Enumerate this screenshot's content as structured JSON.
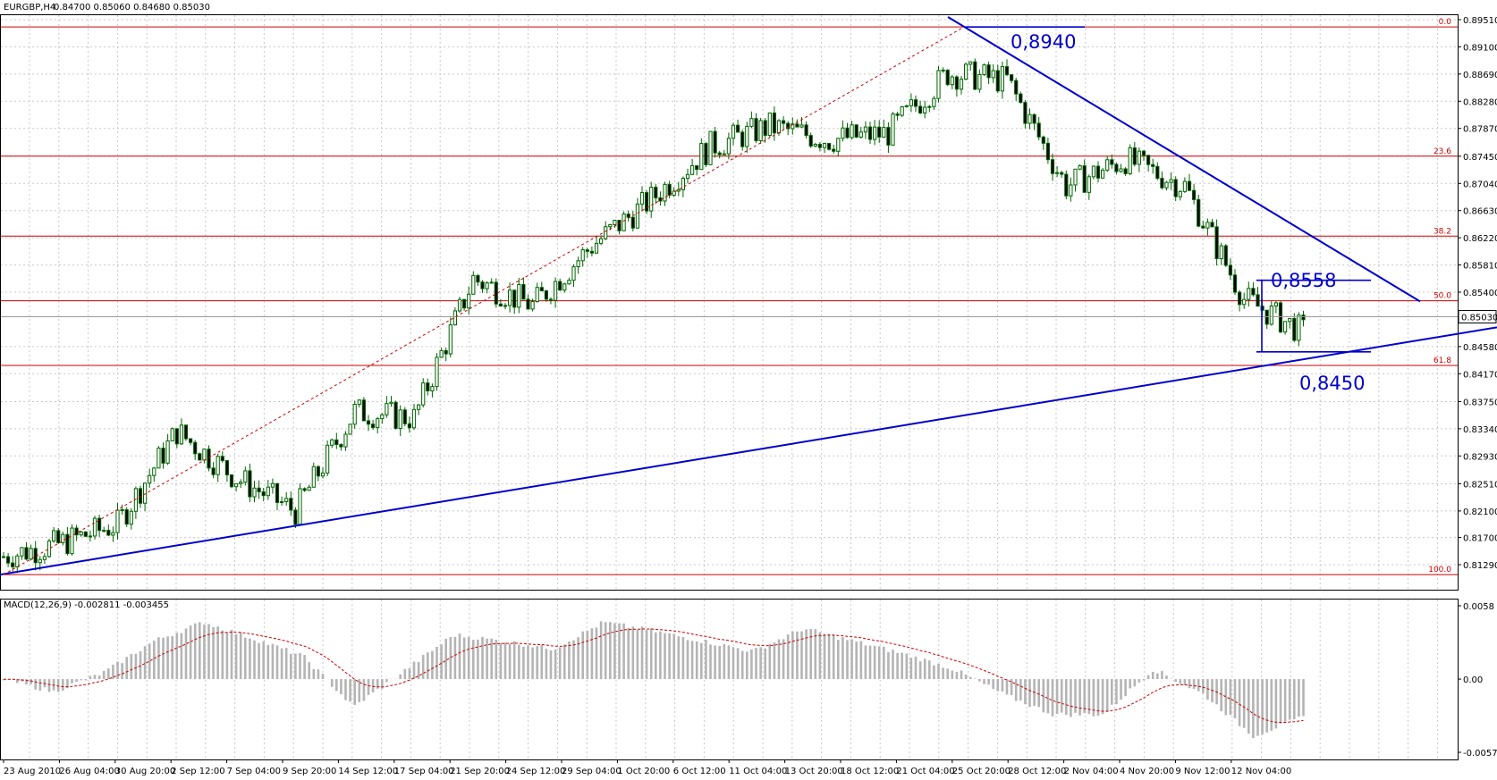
{
  "header": {
    "symbol": "EURGBP,H4",
    "ohlc": "0.84700 0.85060 0.84680 0.85030"
  },
  "price_axis": {
    "ticks": [
      "0.89510",
      "0.89100",
      "0.88690",
      "0.88280",
      "0.87870",
      "0.87450",
      "0.87040",
      "0.86630",
      "0.86220",
      "0.85810",
      "0.85400",
      "0.84580",
      "0.84170",
      "0.83750",
      "0.83340",
      "0.82930",
      "0.82510",
      "0.82100",
      "0.81700",
      "0.81290"
    ],
    "current": "0.85030"
  },
  "fib_levels": [
    {
      "label": "0.0",
      "value": 0.894
    },
    {
      "label": "23.6",
      "value": 0.87451
    },
    {
      "label": "38.2",
      "value": 0.86245
    },
    {
      "label": "50.0",
      "value": 0.8527
    },
    {
      "label": "61.8",
      "value": 0.84295
    },
    {
      "label": "100.0",
      "value": 0.8114
    }
  ],
  "annotations": {
    "high": "0,8940",
    "mid": "0,8558",
    "low": "0,8450"
  },
  "macd": {
    "label": "MACD(12,26,9) -0.002811 -0.003455",
    "ticks": [
      "0.0058",
      "0.00",
      "-0.00579"
    ]
  },
  "time_axis": [
    "23 Aug 2010",
    "26 Aug 04:00",
    "30 Aug 20:00",
    "2 Sep 12:00",
    "7 Sep 04:00",
    "9 Sep 20:00",
    "14 Sep 12:00",
    "17 Sep 04:00",
    "21 Sep 20:00",
    "24 Sep 12:00",
    "29 Sep 04:00",
    "1 Oct 20:00",
    "6 Oct 12:00",
    "11 Oct 04:00",
    "13 Oct 20:00",
    "18 Oct 12:00",
    "21 Oct 04:00",
    "25 Oct 20:00",
    "28 Oct 12:00",
    "2 Nov 04:00",
    "4 Nov 20:00",
    "9 Nov 12:00",
    "12 Nov 04:00"
  ],
  "colors": {
    "candle": "#006400",
    "fib_line": "#cc0000",
    "trend_line": "#0000cc",
    "grid": "#c8c8c8",
    "macd_hist": "#b4b4b4",
    "macd_signal": "#cc0000"
  },
  "chart_data": {
    "type": "candlestick",
    "title": "EURGBP,H4",
    "ylim": [
      0.8129,
      0.8951
    ],
    "path_points": [
      {
        "time": "23 Aug 2010",
        "price": 0.814
      },
      {
        "time": "26 Aug 04:00",
        "price": 0.816
      },
      {
        "time": "30 Aug 20:00",
        "price": 0.819
      },
      {
        "time": "2 Sep 12:00",
        "price": 0.833
      },
      {
        "time": "7 Sep 04:00",
        "price": 0.826
      },
      {
        "time": "9 Sep 20:00",
        "price": 0.821
      },
      {
        "time": "14 Sep 12:00",
        "price": 0.836
      },
      {
        "time": "17 Sep 04:00",
        "price": 0.835
      },
      {
        "time": "21 Sep 20:00",
        "price": 0.856
      },
      {
        "time": "24 Sep 12:00",
        "price": 0.852
      },
      {
        "time": "29 Sep 04:00",
        "price": 0.861
      },
      {
        "time": "1 Oct 20:00",
        "price": 0.868
      },
      {
        "time": "6 Oct 12:00",
        "price": 0.876
      },
      {
        "time": "11 Oct 04:00",
        "price": 0.879
      },
      {
        "time": "13 Oct 20:00",
        "price": 0.877
      },
      {
        "time": "18 Oct 12:00",
        "price": 0.878
      },
      {
        "time": "21 Oct 04:00",
        "price": 0.887
      },
      {
        "time": "25 Oct 20:00",
        "price": 0.886
      },
      {
        "time": "28 Oct 12:00",
        "price": 0.87
      },
      {
        "time": "2 Nov 04:00",
        "price": 0.874
      },
      {
        "time": "4 Nov 20:00",
        "price": 0.87
      },
      {
        "time": "9 Nov 12:00",
        "price": 0.853
      },
      {
        "time": "12 Nov 04:00",
        "price": 0.848
      }
    ],
    "high": 0.894,
    "low": 0.845,
    "last": 0.8503,
    "macd_ylim": [
      -0.00579,
      0.0058
    ]
  }
}
